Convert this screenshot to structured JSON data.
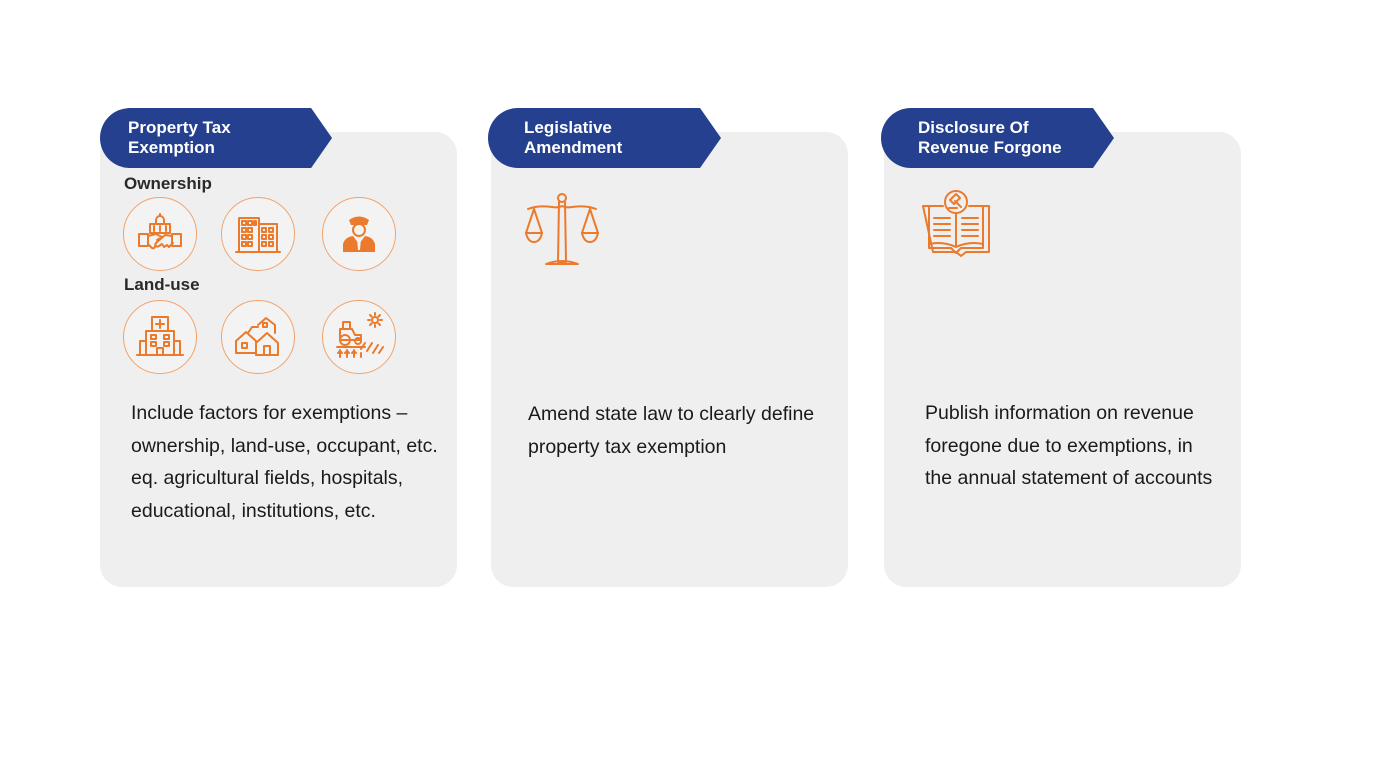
{
  "cards": [
    {
      "title": "Property Tax\nExemption",
      "sections": [
        {
          "label": "Ownership",
          "icons": [
            "government-building-handshake-icon",
            "office-building-icon",
            "police-officer-icon"
          ]
        },
        {
          "label": "Land-use",
          "icons": [
            "hospital-icon",
            "houses-icon",
            "agriculture-tractor-field-icon"
          ]
        }
      ],
      "description": "Include factors for exemptions – ownership, land-use, occupant, etc. eq. agricultural fields, hospitals, educational, institutions, etc."
    },
    {
      "title": "Legislative\nAmendment",
      "icon": "scales-of-justice-icon",
      "description": "Amend state law to clearly define property tax exemption"
    },
    {
      "title": "Disclosure Of\nRevenue Forgone",
      "icon": "law-book-gavel-icon",
      "description": "Publish information on revenue foregone due to exemptions, in the annual statement of accounts"
    }
  ],
  "colors": {
    "tab": "#24408e",
    "card": "#efefef",
    "icon": "#ec7a2c"
  }
}
